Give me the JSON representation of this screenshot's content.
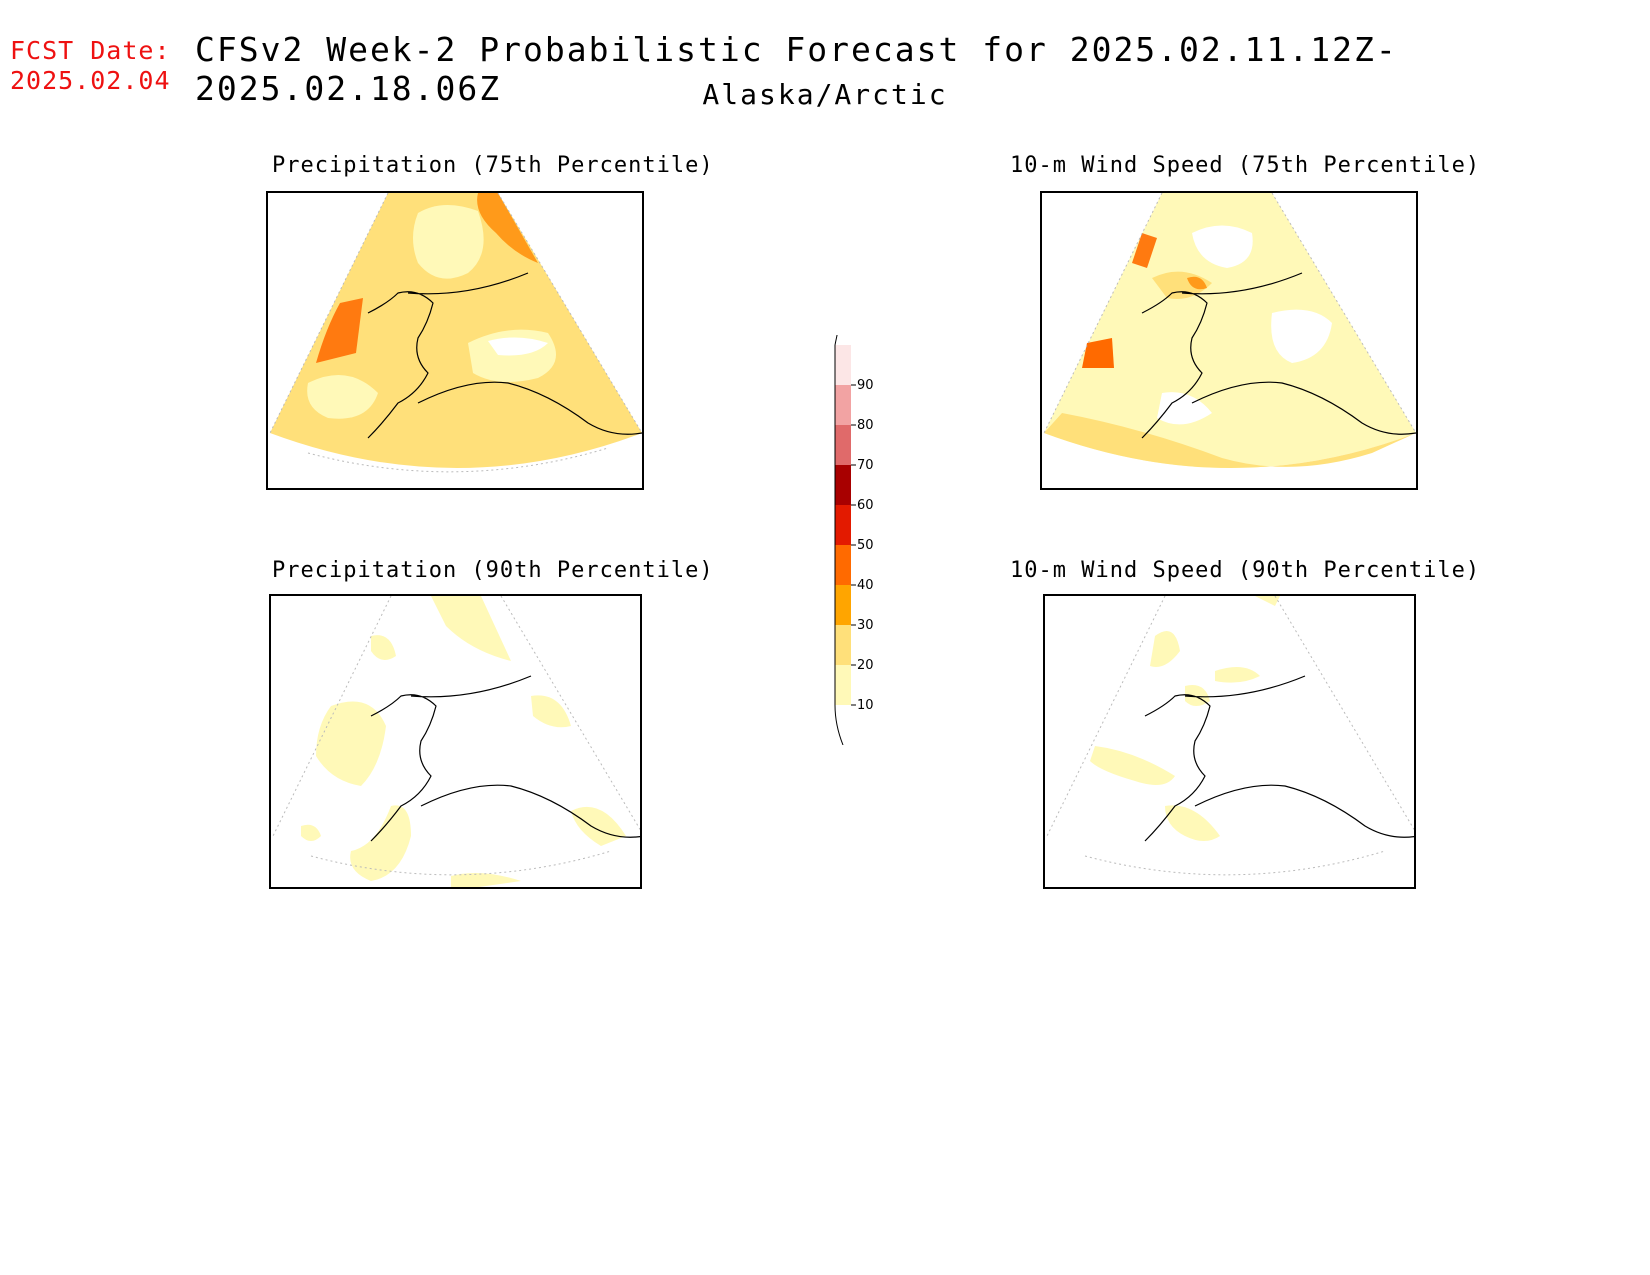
{
  "header": {
    "fcst_label": "FCST Date:",
    "fcst_date": "2025.02.04",
    "title": "CFSv2 Week-2 Probabilistic Forecast for 2025.02.11.12Z-2025.02.18.06Z",
    "subtitle": "Alaska/Arctic"
  },
  "panels": [
    {
      "title": "Precipitation (75th Percentile)",
      "fill_level": "20-30",
      "max_prob": "40-50"
    },
    {
      "title": "10-m Wind Speed (75th Percentile)",
      "fill_level": "10-20",
      "max_prob": "30-40"
    },
    {
      "title": "Precipitation (90th Percentile)",
      "fill_level": "<10",
      "max_prob": "10-20"
    },
    {
      "title": "10-m Wind Speed (90th Percentile)",
      "fill_level": "<10",
      "max_prob": "10-20"
    }
  ],
  "colorbar": {
    "levels": [
      10,
      20,
      30,
      40,
      50,
      60,
      70,
      80,
      90
    ],
    "labels": [
      "10",
      "20",
      "30",
      "40",
      "50",
      "60",
      "70",
      "80",
      "90"
    ],
    "colors": [
      "#fff9b8",
      "#ffe07a",
      "#ffa500",
      "#ff6a00",
      "#e31a00",
      "#a80000",
      "#e06a6a",
      "#f2a3a3",
      "#fce6e6"
    ]
  }
}
